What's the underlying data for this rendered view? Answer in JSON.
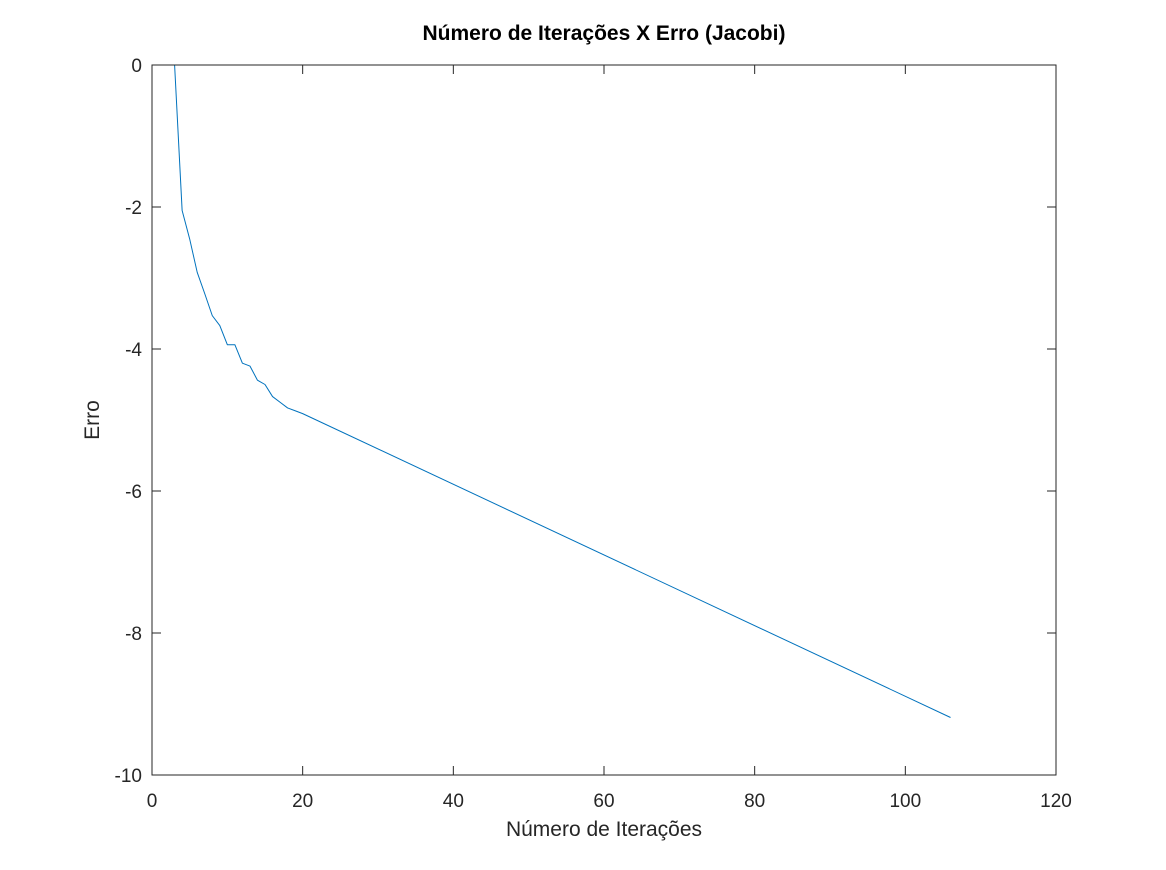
{
  "chart_data": {
    "type": "line",
    "title": "Número de Iterações X Erro (Jacobi)",
    "xlabel": "Número de Iterações",
    "ylabel": "Erro",
    "xlim": [
      0,
      120
    ],
    "ylim": [
      -10,
      0
    ],
    "xticks": [
      0,
      20,
      40,
      60,
      80,
      100,
      120
    ],
    "yticks": [
      0,
      -2,
      -4,
      -6,
      -8,
      -10
    ],
    "xtick_labels": [
      "0",
      "20",
      "40",
      "60",
      "80",
      "100",
      "120"
    ],
    "ytick_labels": [
      "0",
      "-2",
      "-4",
      "-6",
      "-8",
      "-10"
    ],
    "grid": false,
    "box": true,
    "series": [
      {
        "color": "#0072bd",
        "x": [
          1,
          2,
          3,
          4,
          5,
          6,
          7,
          8,
          9,
          10,
          11,
          12,
          13,
          14,
          15,
          16,
          17,
          18,
          19,
          20,
          106
        ],
        "y": [
          0,
          0,
          0,
          -2.05,
          -2.45,
          -2.92,
          -3.22,
          -3.53,
          -3.67,
          -3.94,
          -3.94,
          -4.2,
          -4.24,
          -4.44,
          -4.5,
          -4.67,
          -4.75,
          -4.83,
          -4.87,
          -4.91,
          -9.19
        ]
      }
    ]
  }
}
